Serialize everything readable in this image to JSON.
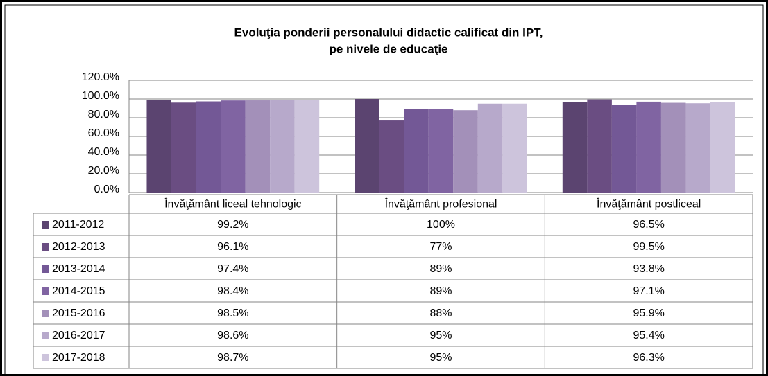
{
  "chart_data": {
    "type": "bar",
    "title": [
      "Evoluţia ponderii personalului didactic calificat din IPT,",
      "pe nivele de educaţie"
    ],
    "categories": [
      "Învăţământ liceal tehnologic",
      "Învăţământ profesional",
      "Învăţământ postliceal"
    ],
    "ylim": [
      0,
      120
    ],
    "yticks": [
      {
        "value": 0,
        "label": "0.0%"
      },
      {
        "value": 20,
        "label": "20.0%"
      },
      {
        "value": 40,
        "label": "40.0%"
      },
      {
        "value": 60,
        "label": "60.0%"
      },
      {
        "value": 80,
        "label": "80.0%"
      },
      {
        "value": 100,
        "label": "100.0%"
      },
      {
        "value": 120,
        "label": "120.0%"
      }
    ],
    "grid": true,
    "series": [
      {
        "name": "2011-2012",
        "color": "#5b4470",
        "values": [
          99.2,
          100,
          96.5
        ],
        "value_labels": [
          "99.2%",
          "100%",
          "96.5%"
        ]
      },
      {
        "name": "2012-2013",
        "color": "#6a4d82",
        "values": [
          96.1,
          77,
          99.5
        ],
        "value_labels": [
          "96.1%",
          "77%",
          "99.5%"
        ]
      },
      {
        "name": "2013-2014",
        "color": "#735896",
        "values": [
          97.4,
          89,
          93.8
        ],
        "value_labels": [
          "97.4%",
          "89%",
          "93.8%"
        ]
      },
      {
        "name": "2014-2015",
        "color": "#8064a2",
        "values": [
          98.4,
          89,
          97.1
        ],
        "value_labels": [
          "98.4%",
          "89%",
          "97.1%"
        ]
      },
      {
        "name": "2015-2016",
        "color": "#a390b9",
        "values": [
          98.5,
          88,
          95.9
        ],
        "value_labels": [
          "98.5%",
          "88%",
          "95.9%"
        ]
      },
      {
        "name": "2016-2017",
        "color": "#b7a9cb",
        "values": [
          98.6,
          95,
          95.4
        ],
        "value_labels": [
          "98.6%",
          "95%",
          "95.4%"
        ]
      },
      {
        "name": "2017-2018",
        "color": "#cdc4dc",
        "values": [
          98.7,
          95,
          96.3
        ],
        "value_labels": [
          "98.7%",
          "95%",
          "96.3%"
        ]
      }
    ]
  }
}
